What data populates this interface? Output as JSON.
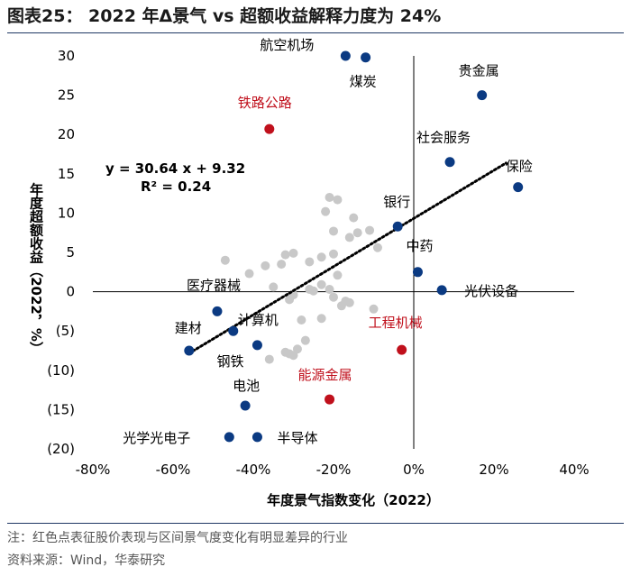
{
  "title": "图表25：  2022 年Δ景气 vs 超额收益解释力度为 24%",
  "notes": {
    "note": "注：红色点表征股价表现与区间景气度变化有明显差异的行业",
    "source": "资料来源：Wind，华泰研究"
  },
  "colors": {
    "navy": "#0b3a82",
    "red": "#c0101c",
    "gray": "#c8c8c8",
    "rule": "#1f3864"
  },
  "chart_data": {
    "type": "scatter",
    "xlabel": "年度景气指数变化（2022）",
    "ylabel": "年度超额收益（2022，%）",
    "xlim": [
      -0.8,
      0.4
    ],
    "ylim": [
      -20,
      30
    ],
    "x_ticks": [
      -0.8,
      -0.6,
      -0.4,
      -0.2,
      0.0,
      0.2,
      0.4
    ],
    "x_tick_labels": [
      "-80%",
      "-60%",
      "-40%",
      "-20%",
      "0%",
      "20%",
      "40%"
    ],
    "y_ticks": [
      30,
      25,
      20,
      15,
      10,
      5,
      0,
      -5,
      -10,
      -15,
      -20
    ],
    "y_tick_labels": [
      "30",
      "25",
      "20",
      "15",
      "10",
      "5",
      "0",
      "(5)",
      "(10)",
      "(15)",
      "(20)"
    ],
    "equation": "y = 30.64 x + 9.32",
    "r_squared": "R² = 0.24",
    "trendline": {
      "slope": 30.64,
      "intercept": 9.32,
      "x_range": [
        -0.56,
        0.23
      ]
    },
    "labeled_points": [
      {
        "name": "航空机场",
        "x": -0.17,
        "y": 30.0,
        "color": "navy"
      },
      {
        "name": "煤炭",
        "x": -0.12,
        "y": 29.8,
        "color": "navy"
      },
      {
        "name": "贵金属",
        "x": 0.17,
        "y": 25.0,
        "color": "navy"
      },
      {
        "name": "铁路公路",
        "x": -0.36,
        "y": 20.7,
        "color": "red"
      },
      {
        "name": "社会服务",
        "x": 0.09,
        "y": 16.5,
        "color": "navy"
      },
      {
        "name": "保险",
        "x": 0.26,
        "y": 13.3,
        "color": "navy"
      },
      {
        "name": "银行",
        "x": -0.04,
        "y": 8.3,
        "color": "navy"
      },
      {
        "name": "中药",
        "x": 0.01,
        "y": 2.5,
        "color": "navy"
      },
      {
        "name": "光伏设备",
        "x": 0.07,
        "y": 0.2,
        "color": "navy"
      },
      {
        "name": "医疗器械",
        "x": -0.49,
        "y": -2.5,
        "color": "navy"
      },
      {
        "name": "计算机",
        "x": -0.45,
        "y": -5.0,
        "color": "navy"
      },
      {
        "name": "建材",
        "x": -0.56,
        "y": -7.5,
        "color": "navy"
      },
      {
        "name": "钢铁",
        "x": -0.39,
        "y": -6.8,
        "color": "navy"
      },
      {
        "name": "工程机械",
        "x": -0.03,
        "y": -7.4,
        "color": "red"
      },
      {
        "name": "能源金属",
        "x": -0.21,
        "y": -13.7,
        "color": "red"
      },
      {
        "name": "电池",
        "x": -0.42,
        "y": -14.5,
        "color": "navy"
      },
      {
        "name": "光学光电子",
        "x": -0.46,
        "y": -18.5,
        "color": "navy"
      },
      {
        "name": "半导体",
        "x": -0.39,
        "y": -18.5,
        "color": "navy"
      }
    ],
    "other_points": [
      {
        "x": -0.47,
        "y": 4.0
      },
      {
        "x": -0.41,
        "y": 2.3
      },
      {
        "x": -0.37,
        "y": 3.3
      },
      {
        "x": -0.33,
        "y": 3.5
      },
      {
        "x": -0.32,
        "y": 4.7
      },
      {
        "x": -0.3,
        "y": 4.9
      },
      {
        "x": -0.26,
        "y": 3.8
      },
      {
        "x": -0.23,
        "y": 4.4
      },
      {
        "x": -0.2,
        "y": 7.7
      },
      {
        "x": -0.2,
        "y": 4.8
      },
      {
        "x": -0.22,
        "y": 10.2
      },
      {
        "x": -0.21,
        "y": 12.0
      },
      {
        "x": -0.19,
        "y": 11.7
      },
      {
        "x": -0.16,
        "y": 6.9
      },
      {
        "x": -0.15,
        "y": 9.4
      },
      {
        "x": -0.14,
        "y": 7.5
      },
      {
        "x": -0.11,
        "y": 7.8
      },
      {
        "x": -0.09,
        "y": 5.6
      },
      {
        "x": -0.19,
        "y": 2.1
      },
      {
        "x": -0.23,
        "y": 0.9
      },
      {
        "x": -0.21,
        "y": 0.3
      },
      {
        "x": -0.25,
        "y": 0.1
      },
      {
        "x": -0.26,
        "y": 0.3
      },
      {
        "x": -0.2,
        "y": -0.7
      },
      {
        "x": -0.17,
        "y": -1.2
      },
      {
        "x": -0.16,
        "y": -1.4
      },
      {
        "x": -0.18,
        "y": -1.8
      },
      {
        "x": -0.1,
        "y": -2.2
      },
      {
        "x": -0.3,
        "y": -0.4
      },
      {
        "x": -0.31,
        "y": -1.0
      },
      {
        "x": -0.35,
        "y": 0.6
      },
      {
        "x": -0.28,
        "y": -3.6
      },
      {
        "x": -0.23,
        "y": -3.4
      },
      {
        "x": -0.27,
        "y": -6.2
      },
      {
        "x": -0.29,
        "y": -7.3
      },
      {
        "x": -0.31,
        "y": -7.9
      },
      {
        "x": -0.36,
        "y": -8.6
      },
      {
        "x": -0.32,
        "y": -7.7
      },
      {
        "x": -0.3,
        "y": -8.1
      }
    ]
  }
}
